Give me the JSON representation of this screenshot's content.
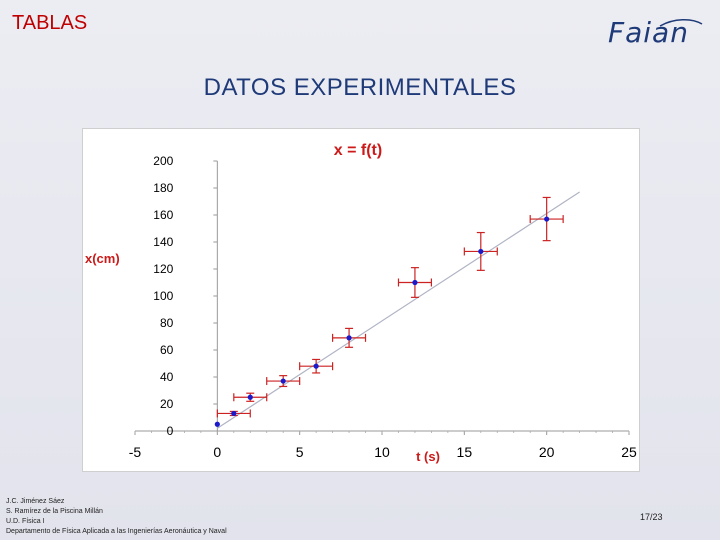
{
  "header": {
    "section": "TABLAS",
    "logo_text": "Faian"
  },
  "slide_title": "DATOS EXPERIMENTALES",
  "colors": {
    "point": "#1a1acc",
    "error_bar": "#cc2222",
    "fit_line": "#b0b4c4",
    "title": "#1f3a78",
    "section": "#c00000"
  },
  "chart_data": {
    "type": "scatter",
    "title": "x = f(t)",
    "xlabel": "t (s)",
    "ylabel": "x(cm)",
    "xlim": [
      -5,
      25
    ],
    "ylim": [
      0,
      200
    ],
    "xticks": [
      -5,
      0,
      5,
      10,
      15,
      20,
      25
    ],
    "yticks": [
      0,
      20,
      40,
      60,
      80,
      100,
      120,
      140,
      160,
      180,
      200
    ],
    "grid": false,
    "points": [
      {
        "x": 0,
        "y": 5,
        "xerr": 0,
        "yerr": 0
      },
      {
        "x": 1,
        "y": 13,
        "xerr": 1,
        "yerr": 1.5
      },
      {
        "x": 2,
        "y": 25,
        "xerr": 1,
        "yerr": 3
      },
      {
        "x": 4,
        "y": 37,
        "xerr": 1,
        "yerr": 4
      },
      {
        "x": 6,
        "y": 48,
        "xerr": 1,
        "yerr": 5
      },
      {
        "x": 8,
        "y": 69,
        "xerr": 1,
        "yerr": 7
      },
      {
        "x": 12,
        "y": 110,
        "xerr": 1,
        "yerr": 11
      },
      {
        "x": 16,
        "y": 133,
        "xerr": 1,
        "yerr": 14
      },
      {
        "x": 20,
        "y": 157,
        "xerr": 1,
        "yerr": 16
      }
    ],
    "fit_line": {
      "x": [
        0,
        22
      ],
      "y": [
        2,
        177
      ]
    }
  },
  "footer": {
    "lines": [
      "J.C. Jiménez Sáez",
      "S. Ramírez de la Piscina Millán",
      "U.D. Física I",
      "Departamento de Física Aplicada a las Ingenierías Aeronáutica y Naval"
    ],
    "page": "17/23"
  }
}
